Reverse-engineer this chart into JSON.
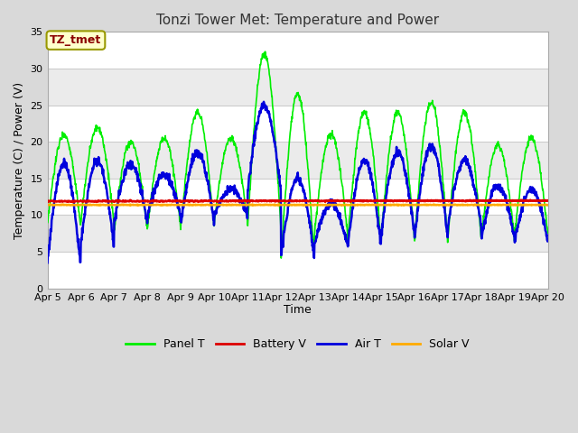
{
  "title": "Tonzi Tower Met: Temperature and Power",
  "xlabel": "Time",
  "ylabel": "Temperature (C) / Power (V)",
  "ylim": [
    0,
    35
  ],
  "yticks": [
    0,
    5,
    10,
    15,
    20,
    25,
    30,
    35
  ],
  "x_labels": [
    "Apr 5",
    "Apr 6",
    "Apr 7",
    "Apr 8",
    "Apr 9",
    "Apr 10",
    "Apr 11",
    "Apr 12",
    "Apr 13",
    "Apr 14",
    "Apr 15",
    "Apr 16",
    "Apr 17",
    "Apr 18",
    "Apr 19",
    "Apr 20"
  ],
  "annotation_text": "TZ_tmet",
  "annotation_bg": "#ffffcc",
  "annotation_fg": "#8b0000",
  "fig_bg": "#d9d9d9",
  "plot_bg": "#ffffff",
  "grid_color": "#e0e0e0",
  "panel_t_color": "#00ee00",
  "battery_v_color": "#dd0000",
  "air_t_color": "#0000dd",
  "solar_v_color": "#ffaa00",
  "panel_t_lw": 1.2,
  "battery_v_lw": 1.8,
  "air_t_lw": 1.8,
  "solar_v_lw": 1.8,
  "num_days": 15,
  "points_per_day": 96,
  "panel_peaks": [
    21.0,
    22.0,
    20.0,
    20.5,
    24.0,
    20.5,
    32.0,
    26.5,
    21.0,
    24.0,
    24.0,
    25.5,
    24.0,
    19.5,
    20.5
  ],
  "panel_troughs": [
    8.5,
    9.0,
    8.0,
    8.5,
    8.5,
    9.0,
    8.5,
    4.0,
    7.5,
    6.5,
    7.0,
    6.5,
    7.0,
    7.0,
    7.5
  ],
  "air_peaks": [
    17.0,
    17.5,
    17.0,
    15.5,
    18.5,
    13.5,
    25.0,
    15.0,
    11.5,
    17.5,
    18.5,
    19.5,
    17.5,
    14.0,
    13.5
  ],
  "air_troughs": [
    3.5,
    6.0,
    9.0,
    10.0,
    9.0,
    10.0,
    13.5,
    4.5,
    6.0,
    6.0,
    7.5,
    7.0,
    8.5,
    7.0,
    6.5
  ],
  "battery_mean": 11.9,
  "solar_mean": 11.4,
  "title_fontsize": 11,
  "axis_fontsize": 9,
  "tick_fontsize": 8
}
